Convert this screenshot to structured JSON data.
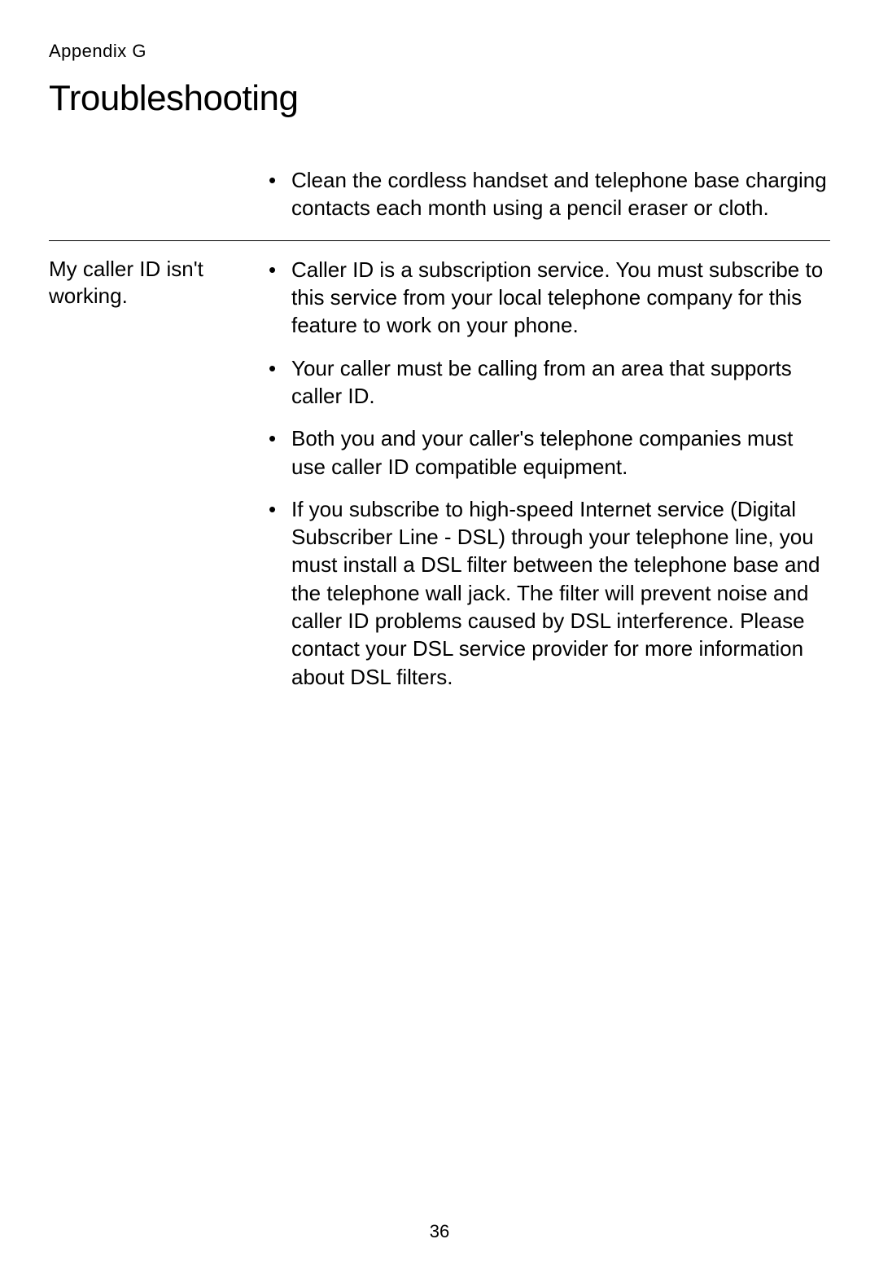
{
  "header": {
    "appendix_label": "Appendix G",
    "title": "Troubleshooting"
  },
  "sections": {
    "section1": {
      "problem": "",
      "bullets": {
        "b0": "Clean the cordless handset and telephone base charging contacts each month using a pencil eraser or cloth."
      }
    },
    "section2": {
      "problem": "My caller ID isn't working.",
      "bullets": {
        "b0": "Caller ID is a subscription service. You must subscribe to this service from your local telephone company for this feature to work on your phone.",
        "b1": "Your caller must be calling from an area that supports caller ID.",
        "b2": "Both you and your caller's telephone companies must use caller ID compatible equipment.",
        "b3": "If you subscribe to high-speed Internet service (Digital Subscriber Line - DSL) through your telephone line, you must install a DSL filter between the telephone base and the telephone wall jack. The filter will prevent noise and caller ID problems caused by DSL interference. Please contact your DSL service provider for more information about DSL filters."
      }
    }
  },
  "footer": {
    "page_number": "36"
  }
}
